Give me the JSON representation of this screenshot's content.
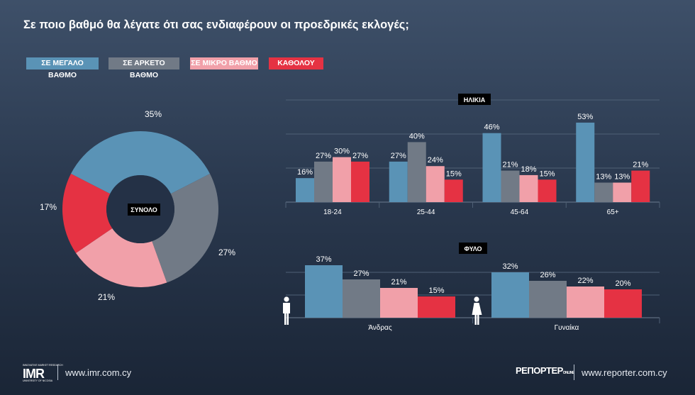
{
  "title": "Σε ποιο βαθμό θα λέγατε ότι σας ενδιαφέρουν οι προεδρικές εκλογές;",
  "colors": {
    "great": "#5a93b6",
    "enough": "#717a86",
    "little": "#f1a0a9",
    "none": "#e53243",
    "badge_bg": "#000000",
    "grid": "#4f6075"
  },
  "legend": [
    {
      "label": "ΣΕ ΜΕΓΑΛΟ ΒΑΘΜΟ",
      "color": "#5a93b6"
    },
    {
      "label": "ΣΕ ΑΡΚΕΤΟ ΒΑΘΜΟ",
      "color": "#717a86"
    },
    {
      "label": "ΣΕ ΜΙΚΡΟ ΒΑΘΜΟ",
      "color": "#f1a0a9"
    },
    {
      "label": "ΚΑΘΟΛΟΥ",
      "color": "#e53243"
    }
  ],
  "chart_data": [
    {
      "type": "pie",
      "title": "ΣΥΝΟΛΟ",
      "labels": [
        "ΣΕ ΜΕΓΑΛΟ ΒΑΘΜΟ",
        "ΣΕ ΑΡΚΕΤΟ ΒΑΘΜΟ",
        "ΣΕ ΜΙΚΡΟ ΒΑΘΜΟ",
        "ΚΑΘΟΛΟΥ"
      ],
      "values": [
        35,
        27,
        21,
        17
      ],
      "value_labels": [
        "35%",
        "27%",
        "21%",
        "17%"
      ]
    },
    {
      "type": "bar",
      "title": "ΗΛΙΚΙΑ",
      "categories": [
        "18-24",
        "25-44",
        "45-64",
        "65+"
      ],
      "ylim": [
        0,
        60
      ],
      "series": [
        {
          "name": "ΣΕ ΜΕΓΑΛΟ ΒΑΘΜΟ",
          "values": [
            16,
            27,
            46,
            53
          ]
        },
        {
          "name": "ΣΕ ΑΡΚΕΤΟ ΒΑΘΜΟ",
          "values": [
            27,
            40,
            21,
            13
          ]
        },
        {
          "name": "ΣΕ ΜΙΚΡΟ ΒΑΘΜΟ",
          "values": [
            30,
            24,
            18,
            13
          ]
        },
        {
          "name": "ΚΑΘΟΛΟΥ",
          "values": [
            27,
            15,
            15,
            21
          ]
        }
      ]
    },
    {
      "type": "bar",
      "title": "ΦΥΛΟ",
      "categories": [
        "Άνδρας",
        "Γυναίκα"
      ],
      "ylim": [
        0,
        40
      ],
      "series": [
        {
          "name": "ΣΕ ΜΕΓΑΛΟ ΒΑΘΜΟ",
          "values": [
            37,
            32
          ]
        },
        {
          "name": "ΣΕ ΑΡΚΕΤΟ ΒΑΘΜΟ",
          "values": [
            27,
            26
          ]
        },
        {
          "name": "ΣΕ ΜΙΚΡΟ ΒΑΘΜΟ",
          "values": [
            21,
            22
          ]
        },
        {
          "name": "ΚΑΘΟΛΟΥ",
          "values": [
            15,
            20
          ]
        }
      ]
    }
  ],
  "footer": {
    "imr_logo": "IMR",
    "imr_top": "INNOVATIVE MARKET RESEARCH",
    "imr_bottom": "UNIVERSITY OF NICOSIA",
    "imr_url": "www.imr.com.cy",
    "reporter_logo": "ΡΕΠΟΡΤΕΡ",
    "reporter_logo_small": "ONLINE",
    "reporter_url": "www.reporter.com.cy"
  }
}
